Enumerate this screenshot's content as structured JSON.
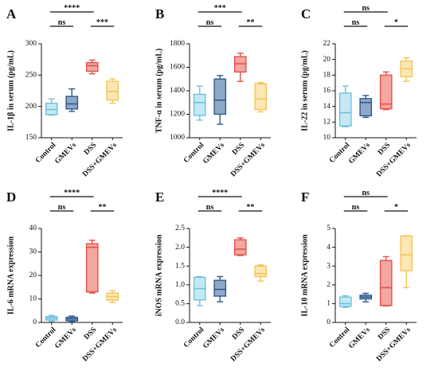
{
  "colors": {
    "Control": {
      "fill": "#c6e8f3",
      "stroke": "#6fc1de"
    },
    "GMEVs": {
      "fill": "#8ea9c8",
      "stroke": "#2f5a8a"
    },
    "DSS": {
      "fill": "#f4a6a0",
      "stroke": "#e2524b"
    },
    "DSS+GMEVs": {
      "fill": "#fce7b3",
      "stroke": "#f3c45a"
    }
  },
  "chart_data": [
    {
      "type": "box",
      "panel": "A",
      "ylabel": "IL-1β in serum (pg/mL)",
      "ylim": [
        150,
        300
      ],
      "yticks": [
        "150",
        "200",
        "250",
        "300"
      ],
      "categories": [
        "Control",
        "GMEVs",
        "DSS",
        "DSS+GMEVs"
      ],
      "boxes": [
        {
          "min": 186,
          "q1": 187,
          "median": 195,
          "q3": 205,
          "max": 212
        },
        {
          "min": 192,
          "q1": 196,
          "median": 204,
          "q3": 216,
          "max": 228
        },
        {
          "min": 252,
          "q1": 256,
          "median": 265,
          "q3": 270,
          "max": 274
        },
        {
          "min": 205,
          "q1": 210,
          "median": 224,
          "q3": 240,
          "max": 244
        }
      ],
      "comparisons": [
        {
          "label": "****",
          "from": 0,
          "to": 2,
          "level": 2
        },
        {
          "label": "ns",
          "from": 0,
          "to": 1,
          "level": 1
        },
        {
          "label": "***",
          "from": 2,
          "to": 3,
          "level": 1
        }
      ]
    },
    {
      "type": "box",
      "panel": "B",
      "ylabel": "TNF-α in serum (pg/mL)",
      "ylim": [
        1000,
        1800
      ],
      "yticks": [
        "1000",
        "1200",
        "1400",
        "1600",
        "1800"
      ],
      "categories": [
        "Control",
        "GMEVs",
        "DSS",
        "DSS+GMEVs"
      ],
      "boxes": [
        {
          "min": 1150,
          "q1": 1190,
          "median": 1300,
          "q3": 1370,
          "max": 1440
        },
        {
          "min": 1115,
          "q1": 1200,
          "median": 1320,
          "q3": 1500,
          "max": 1530
        },
        {
          "min": 1480,
          "q1": 1560,
          "median": 1630,
          "q3": 1690,
          "max": 1720
        },
        {
          "min": 1220,
          "q1": 1240,
          "median": 1330,
          "q3": 1460,
          "max": 1470
        }
      ],
      "comparisons": [
        {
          "label": "***",
          "from": 0,
          "to": 2,
          "level": 2
        },
        {
          "label": "ns",
          "from": 0,
          "to": 1,
          "level": 1
        },
        {
          "label": "**",
          "from": 2,
          "to": 3,
          "level": 1
        }
      ]
    },
    {
      "type": "box",
      "panel": "C",
      "ylabel": "IL-22 in serum (pg/mL)",
      "ylim": [
        10,
        22
      ],
      "yticks": [
        "10",
        "12",
        "14",
        "16",
        "18",
        "20",
        "22"
      ],
      "categories": [
        "Control",
        "GMEVs",
        "DSS",
        "DSS+GMEVs"
      ],
      "boxes": [
        {
          "min": 11.4,
          "q1": 11.5,
          "median": 13.2,
          "q3": 15.7,
          "max": 16.6
        },
        {
          "min": 12.6,
          "q1": 12.8,
          "median": 14.5,
          "q3": 15.0,
          "max": 15.4
        },
        {
          "min": 13.6,
          "q1": 13.7,
          "median": 14.3,
          "q3": 18.0,
          "max": 18.4
        },
        {
          "min": 17.2,
          "q1": 17.8,
          "median": 18.8,
          "q3": 19.8,
          "max": 20.2
        }
      ],
      "comparisons": [
        {
          "label": "ns",
          "from": 0,
          "to": 2,
          "level": 2
        },
        {
          "label": "ns",
          "from": 0,
          "to": 1,
          "level": 1
        },
        {
          "label": "*",
          "from": 2,
          "to": 3,
          "level": 1
        }
      ]
    },
    {
      "type": "box",
      "panel": "D",
      "ylabel": "IL-6 mRNA expression",
      "ylim": [
        0,
        40
      ],
      "yticks": [
        "0",
        "10",
        "20",
        "30",
        "40"
      ],
      "categories": [
        "Control",
        "GMEVs",
        "DSS",
        "DSS+GMEVs"
      ],
      "boxes": [
        {
          "min": 0.5,
          "q1": 1.0,
          "median": 1.8,
          "q3": 2.5,
          "max": 3.0
        },
        {
          "min": 0.3,
          "q1": 0.7,
          "median": 1.5,
          "q3": 2.2,
          "max": 2.7
        },
        {
          "min": 12.5,
          "q1": 13.0,
          "median": 32.0,
          "q3": 33.5,
          "max": 35.0
        },
        {
          "min": 8.5,
          "q1": 9.5,
          "median": 11.0,
          "q3": 12.5,
          "max": 13.5
        }
      ],
      "comparisons": [
        {
          "label": "****",
          "from": 0,
          "to": 2,
          "level": 2
        },
        {
          "label": "ns",
          "from": 0,
          "to": 1,
          "level": 1
        },
        {
          "label": "**",
          "from": 2,
          "to": 3,
          "level": 1
        }
      ]
    },
    {
      "type": "box",
      "panel": "E",
      "ylabel": "iNOS mRNA expression",
      "ylim": [
        0,
        2.5
      ],
      "yticks": [
        "0.0",
        "0.5",
        "1.0",
        "1.5",
        "2.0",
        "2.5"
      ],
      "categories": [
        "Control",
        "GMEVs",
        "DSS",
        "DSS+GMEVs"
      ],
      "boxes": [
        {
          "min": 0.45,
          "q1": 0.6,
          "median": 0.9,
          "q3": 1.2,
          "max": 1.22
        },
        {
          "min": 0.55,
          "q1": 0.7,
          "median": 0.88,
          "q3": 1.12,
          "max": 1.22
        },
        {
          "min": 1.78,
          "q1": 1.8,
          "median": 1.95,
          "q3": 2.2,
          "max": 2.25
        },
        {
          "min": 1.1,
          "q1": 1.22,
          "median": 1.3,
          "q3": 1.5,
          "max": 1.53
        }
      ],
      "comparisons": [
        {
          "label": "****",
          "from": 0,
          "to": 2,
          "level": 2
        },
        {
          "label": "ns",
          "from": 0,
          "to": 1,
          "level": 1
        },
        {
          "label": "**",
          "from": 2,
          "to": 3,
          "level": 1
        }
      ]
    },
    {
      "type": "box",
      "panel": "F",
      "ylabel": "IL-10 mRNA expression",
      "ylim": [
        0,
        5
      ],
      "yticks": [
        "0",
        "1",
        "2",
        "3",
        "4",
        "5"
      ],
      "categories": [
        "Control",
        "GMEVs",
        "DSS",
        "DSS+GMEVs"
      ],
      "boxes": [
        {
          "min": 0.8,
          "q1": 0.85,
          "median": 1.0,
          "q3": 1.35,
          "max": 1.42
        },
        {
          "min": 1.1,
          "q1": 1.25,
          "median": 1.35,
          "q3": 1.45,
          "max": 1.55
        },
        {
          "min": 0.88,
          "q1": 0.9,
          "median": 1.85,
          "q3": 3.3,
          "max": 3.5
        },
        {
          "min": 1.85,
          "q1": 2.75,
          "median": 3.6,
          "q3": 4.6,
          "max": 4.62
        }
      ],
      "comparisons": [
        {
          "label": "ns",
          "from": 0,
          "to": 2,
          "level": 2
        },
        {
          "label": "ns",
          "from": 0,
          "to": 1,
          "level": 1
        },
        {
          "label": "*",
          "from": 2,
          "to": 3,
          "level": 1
        }
      ]
    }
  ]
}
